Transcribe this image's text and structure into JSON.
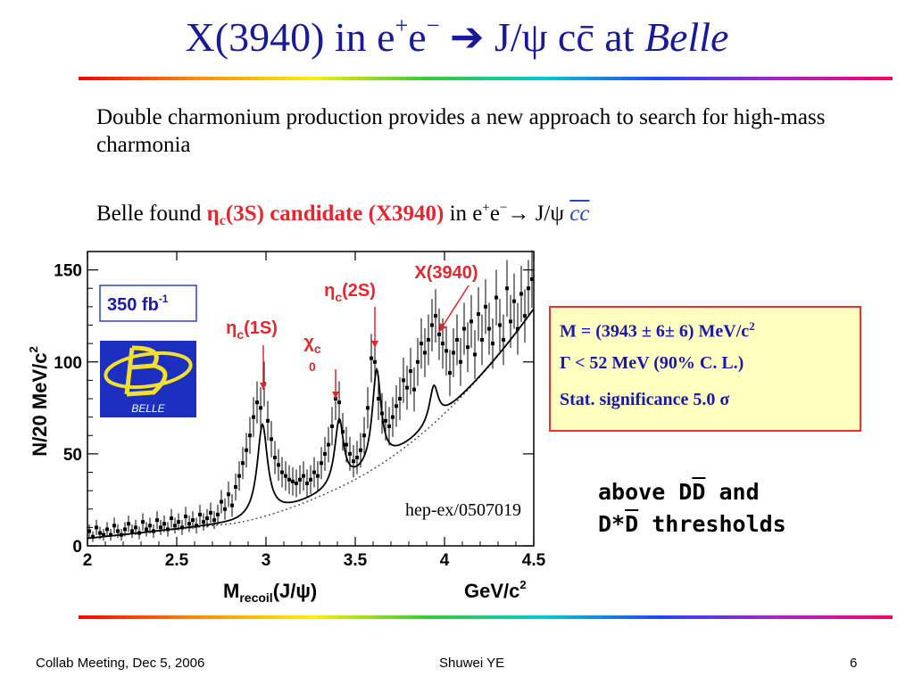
{
  "slide": {
    "title_pre": "X(3940) in e",
    "title_sup1": "+",
    "title_mid": "e",
    "title_sup2": "−",
    "title_arrow": " ➔ ",
    "title_post": "J/ψ cc̄ at ",
    "title_belle": "Belle",
    "para1": "Double charmonium production provides a new approach to search for high-mass charmonia",
    "para2_pre": "Belle found ",
    "para2_eta": "η",
    "para2_eta_sub": "c",
    "para2_red": "(3S) candidate (X3940)",
    "para2_mid": " in e",
    "para2_sup1": "+",
    "para2_e": "e",
    "para2_sup2": "−",
    "para2_arrow": "→ J/ψ ",
    "para2_cc": "cc",
    "thresholds_line1_pre": "above D",
    "thresholds_line1_ovl": "D",
    "thresholds_line1_post": " and",
    "thresholds_line2_pre": "D*",
    "thresholds_line2_ovl": "D",
    "thresholds_line2_post": " thresholds"
  },
  "results": {
    "mass": "M = (3943 ± 6± 6) MeV/c",
    "mass_sup": "2",
    "width": "Γ < 52 MeV (90% C. L.)",
    "significance": "Stat. significance  5.0 σ"
  },
  "footer": {
    "left": "Collab Meeting,  Dec 5, 2006",
    "center": "Shuwei YE",
    "right": "6"
  },
  "colors": {
    "title": "#1a1a99",
    "annotation_red": "#e6262e",
    "box_border": "#e33333",
    "box_fill": "#ffffc0",
    "result_text": "#1a1aaa",
    "lumi_text": "#1a1aaa"
  },
  "chart_data": {
    "type": "scatter",
    "xlabel_main": "M",
    "xlabel_sub": "recoil",
    "xlabel_post": "(J/ψ)",
    "xunit": "GeV/c",
    "xunit_sup": "2",
    "ylabel": "N/20 MeV/c",
    "ylabel_sup": "2",
    "xlim": [
      2.0,
      4.5
    ],
    "ylim": [
      0,
      160
    ],
    "x_ticks": [
      2,
      2.5,
      3,
      3.5,
      4,
      4.5
    ],
    "x_tick_labels": [
      "2",
      "2.5",
      "3",
      "3.5",
      "4",
      "4.5"
    ],
    "y_ticks": [
      0,
      50,
      100,
      150
    ],
    "y_tick_labels": [
      "0",
      "50",
      "100",
      "150"
    ],
    "luminosity": "350 fb",
    "luminosity_sup": "-1",
    "logo_text": "BELLE",
    "reference": "hep-ex/0507019",
    "points": [
      [
        2.01,
        8
      ],
      [
        2.03,
        5
      ],
      [
        2.05,
        10
      ],
      [
        2.07,
        7
      ],
      [
        2.09,
        6
      ],
      [
        2.11,
        9
      ],
      [
        2.13,
        6
      ],
      [
        2.15,
        11
      ],
      [
        2.17,
        8
      ],
      [
        2.19,
        6
      ],
      [
        2.21,
        9
      ],
      [
        2.23,
        12
      ],
      [
        2.25,
        8
      ],
      [
        2.27,
        10
      ],
      [
        2.29,
        7
      ],
      [
        2.31,
        13
      ],
      [
        2.33,
        9
      ],
      [
        2.35,
        11
      ],
      [
        2.37,
        8
      ],
      [
        2.39,
        14
      ],
      [
        2.41,
        10
      ],
      [
        2.43,
        12
      ],
      [
        2.45,
        9
      ],
      [
        2.47,
        15
      ],
      [
        2.49,
        11
      ],
      [
        2.51,
        13
      ],
      [
        2.53,
        10
      ],
      [
        2.55,
        16
      ],
      [
        2.57,
        12
      ],
      [
        2.59,
        14
      ],
      [
        2.61,
        11
      ],
      [
        2.63,
        17
      ],
      [
        2.65,
        13
      ],
      [
        2.67,
        15
      ],
      [
        2.69,
        18
      ],
      [
        2.71,
        14
      ],
      [
        2.73,
        17
      ],
      [
        2.75,
        24
      ],
      [
        2.77,
        20
      ],
      [
        2.79,
        28
      ],
      [
        2.81,
        22
      ],
      [
        2.83,
        32
      ],
      [
        2.85,
        38
      ],
      [
        2.87,
        45
      ],
      [
        2.89,
        52
      ],
      [
        2.91,
        60
      ],
      [
        2.93,
        70
      ],
      [
        2.95,
        78
      ],
      [
        2.97,
        75
      ],
      [
        2.99,
        88
      ],
      [
        3.01,
        68
      ],
      [
        3.03,
        58
      ],
      [
        3.05,
        48
      ],
      [
        3.07,
        44
      ],
      [
        3.09,
        40
      ],
      [
        3.11,
        38
      ],
      [
        3.13,
        36
      ],
      [
        3.15,
        35
      ],
      [
        3.17,
        34
      ],
      [
        3.19,
        36
      ],
      [
        3.21,
        38
      ],
      [
        3.23,
        34
      ],
      [
        3.25,
        36
      ],
      [
        3.27,
        40
      ],
      [
        3.29,
        38
      ],
      [
        3.31,
        45
      ],
      [
        3.33,
        50
      ],
      [
        3.35,
        55
      ],
      [
        3.37,
        65
      ],
      [
        3.39,
        80
      ],
      [
        3.41,
        78
      ],
      [
        3.43,
        62
      ],
      [
        3.45,
        55
      ],
      [
        3.47,
        50
      ],
      [
        3.49,
        46
      ],
      [
        3.51,
        48
      ],
      [
        3.53,
        52
      ],
      [
        3.55,
        60
      ],
      [
        3.57,
        75
      ],
      [
        3.59,
        102
      ],
      [
        3.61,
        100
      ],
      [
        3.63,
        80
      ],
      [
        3.65,
        72
      ],
      [
        3.67,
        68
      ],
      [
        3.69,
        65
      ],
      [
        3.71,
        70
      ],
      [
        3.73,
        76
      ],
      [
        3.75,
        80
      ],
      [
        3.77,
        90
      ],
      [
        3.79,
        86
      ],
      [
        3.81,
        95
      ],
      [
        3.83,
        85
      ],
      [
        3.85,
        100
      ],
      [
        3.87,
        110
      ],
      [
        3.89,
        105
      ],
      [
        3.91,
        112
      ],
      [
        3.93,
        120
      ],
      [
        3.95,
        125
      ],
      [
        3.97,
        115
      ],
      [
        3.99,
        110
      ],
      [
        4.01,
        106
      ],
      [
        4.03,
        94
      ],
      [
        4.05,
        105
      ],
      [
        4.07,
        112
      ],
      [
        4.09,
        100
      ],
      [
        4.11,
        118
      ],
      [
        4.13,
        108
      ],
      [
        4.15,
        122
      ],
      [
        4.17,
        104
      ],
      [
        4.19,
        126
      ],
      [
        4.21,
        112
      ],
      [
        4.23,
        130
      ],
      [
        4.25,
        118
      ],
      [
        4.27,
        110
      ],
      [
        4.29,
        135
      ],
      [
        4.31,
        120
      ],
      [
        4.33,
        112
      ],
      [
        4.35,
        140
      ],
      [
        4.37,
        122
      ],
      [
        4.39,
        133
      ],
      [
        4.41,
        118
      ],
      [
        4.43,
        137
      ],
      [
        4.45,
        125
      ],
      [
        4.47,
        140
      ],
      [
        4.49,
        145
      ]
    ],
    "annotations": [
      {
        "label": "η",
        "sub": "c",
        "post": "(1S)",
        "x": 3.0,
        "y": 92
      },
      {
        "label": "χ",
        "sub": "c0",
        "post": "",
        "x": 3.41,
        "y": 83
      },
      {
        "label": "η",
        "sub": "c",
        "post": "(2S)",
        "x": 3.63,
        "y": 106
      },
      {
        "label": "X(3940)",
        "sub": "",
        "post": "",
        "x": 3.94,
        "y": 125
      }
    ]
  }
}
